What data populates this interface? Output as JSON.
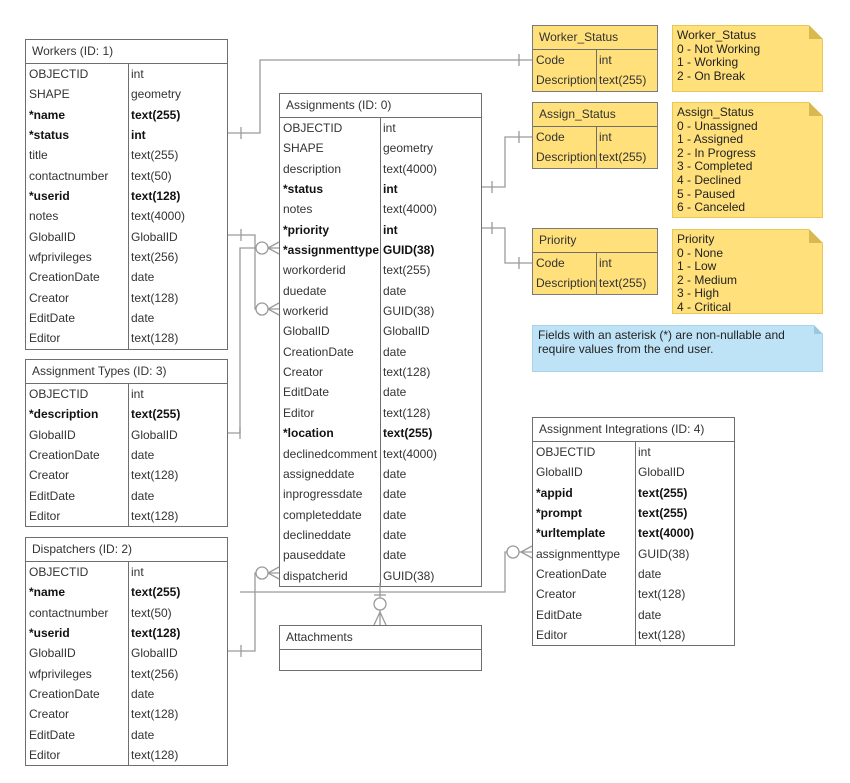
{
  "tables": [
    {
      "id": "workers",
      "title": "Workers (ID: 1)",
      "rows": [
        [
          "OBJECTID",
          "int",
          0
        ],
        [
          "SHAPE",
          "geometry",
          0
        ],
        [
          "*name",
          "text(255)",
          1
        ],
        [
          "*status",
          "int",
          1
        ],
        [
          "title",
          "text(255)",
          0
        ],
        [
          "contactnumber",
          "text(50)",
          0
        ],
        [
          "*userid",
          "text(128)",
          1
        ],
        [
          "notes",
          "text(4000)",
          0
        ],
        [
          "GlobalID",
          "GlobalID",
          0
        ],
        [
          "wfprivileges",
          "text(256)",
          0
        ],
        [
          "CreationDate",
          "date",
          0
        ],
        [
          "Creator",
          "text(128)",
          0
        ],
        [
          "EditDate",
          "date",
          0
        ],
        [
          "Editor",
          "text(128)",
          0
        ]
      ]
    },
    {
      "id": "assignment-types",
      "title": "Assignment Types (ID: 3)",
      "rows": [
        [
          "OBJECTID",
          "int",
          0
        ],
        [
          "*description",
          "text(255)",
          1
        ],
        [
          "GlobalID",
          "GlobalID",
          0
        ],
        [
          "CreationDate",
          "date",
          0
        ],
        [
          "Creator",
          "text(128)",
          0
        ],
        [
          "EditDate",
          "date",
          0
        ],
        [
          "Editor",
          "text(128)",
          0
        ]
      ]
    },
    {
      "id": "dispatchers",
      "title": "Dispatchers (ID: 2)",
      "rows": [
        [
          "OBJECTID",
          "int",
          0
        ],
        [
          "*name",
          "text(255)",
          1
        ],
        [
          "contactnumber",
          "text(50)",
          0
        ],
        [
          "*userid",
          "text(128)",
          1
        ],
        [
          "GlobalID",
          "GlobalID",
          0
        ],
        [
          "wfprivileges",
          "text(256)",
          0
        ],
        [
          "CreationDate",
          "date",
          0
        ],
        [
          "Creator",
          "text(128)",
          0
        ],
        [
          "EditDate",
          "date",
          0
        ],
        [
          "Editor",
          "text(128)",
          0
        ]
      ]
    },
    {
      "id": "assignments",
      "title": "Assignments (ID: 0)",
      "rows": [
        [
          "OBJECTID",
          "int",
          0
        ],
        [
          "SHAPE",
          "geometry",
          0
        ],
        [
          "description",
          "text(4000)",
          0
        ],
        [
          "*status",
          "int",
          1
        ],
        [
          "notes",
          "text(4000)",
          0
        ],
        [
          "*priority",
          "int",
          1
        ],
        [
          "*assignmenttype",
          "GUID(38)",
          1
        ],
        [
          "workorderid",
          "text(255)",
          0
        ],
        [
          "duedate",
          "date",
          0
        ],
        [
          "workerid",
          "GUID(38)",
          0
        ],
        [
          "GlobalID",
          "GlobalID",
          0
        ],
        [
          "CreationDate",
          "date",
          0
        ],
        [
          "Creator",
          "text(128)",
          0
        ],
        [
          "EditDate",
          "date",
          0
        ],
        [
          "Editor",
          "text(128)",
          0
        ],
        [
          "*location",
          "text(255)",
          1
        ],
        [
          "declinedcomment",
          "text(4000)",
          0
        ],
        [
          "assigneddate",
          "date",
          0
        ],
        [
          "inprogressdate",
          "date",
          0
        ],
        [
          "completeddate",
          "date",
          0
        ],
        [
          "declineddate",
          "date",
          0
        ],
        [
          "pauseddate",
          "date",
          0
        ],
        [
          "dispatcherid",
          "GUID(38)",
          0
        ]
      ]
    },
    {
      "id": "attachments",
      "title": "Attachments",
      "rows": []
    },
    {
      "id": "assignment-integrations",
      "title": "Assignment Integrations (ID: 4)",
      "rows": [
        [
          "OBJECTID",
          "int",
          0
        ],
        [
          "GlobalID",
          "GlobalID",
          0
        ],
        [
          "*appid",
          "text(255)",
          1
        ],
        [
          "*prompt",
          "text(255)",
          1
        ],
        [
          "*urltemplate",
          "text(4000)",
          1
        ],
        [
          "assignmenttype",
          "GUID(38)",
          0
        ],
        [
          "CreationDate",
          "date",
          0
        ],
        [
          "Creator",
          "text(128)",
          0
        ],
        [
          "EditDate",
          "date",
          0
        ],
        [
          "Editor",
          "text(128)",
          0
        ]
      ]
    },
    {
      "id": "worker-status",
      "title": "Worker_Status",
      "rows": [
        [
          "Code",
          "int",
          0
        ],
        [
          "Description",
          "text(255)",
          0
        ]
      ],
      "yellow": true
    },
    {
      "id": "assign-status",
      "title": "Assign_Status",
      "rows": [
        [
          "Code",
          "int",
          0
        ],
        [
          "Description",
          "text(255)",
          0
        ]
      ],
      "yellow": true
    },
    {
      "id": "priority",
      "title": "Priority",
      "rows": [
        [
          "Code",
          "int",
          0
        ],
        [
          "Description",
          "text(255)",
          0
        ]
      ],
      "yellow": true
    }
  ],
  "notes": [
    {
      "id": "worker-status-note",
      "lines": [
        "Worker_Status",
        "0 - Not Working",
        "1 - Working",
        "2 - On Break"
      ]
    },
    {
      "id": "assign-status-note",
      "lines": [
        "Assign_Status",
        "0 - Unassigned",
        "1 - Assigned",
        "2 - In Progress",
        "3 - Completed",
        "4 - Declined",
        "5 - Paused",
        "6 - Canceled"
      ]
    },
    {
      "id": "priority-note",
      "lines": [
        "Priority",
        "0 - None",
        "1 - Low",
        "2 - Medium",
        "3 - High",
        "4 - Critical"
      ]
    }
  ],
  "info_note": "Fields with an asterisk (*) are non-nullable and require values from the end user.",
  "colors": {
    "lookup": "#ffe07a",
    "info": "#bfe3f6",
    "line": "#9a9a9a"
  }
}
